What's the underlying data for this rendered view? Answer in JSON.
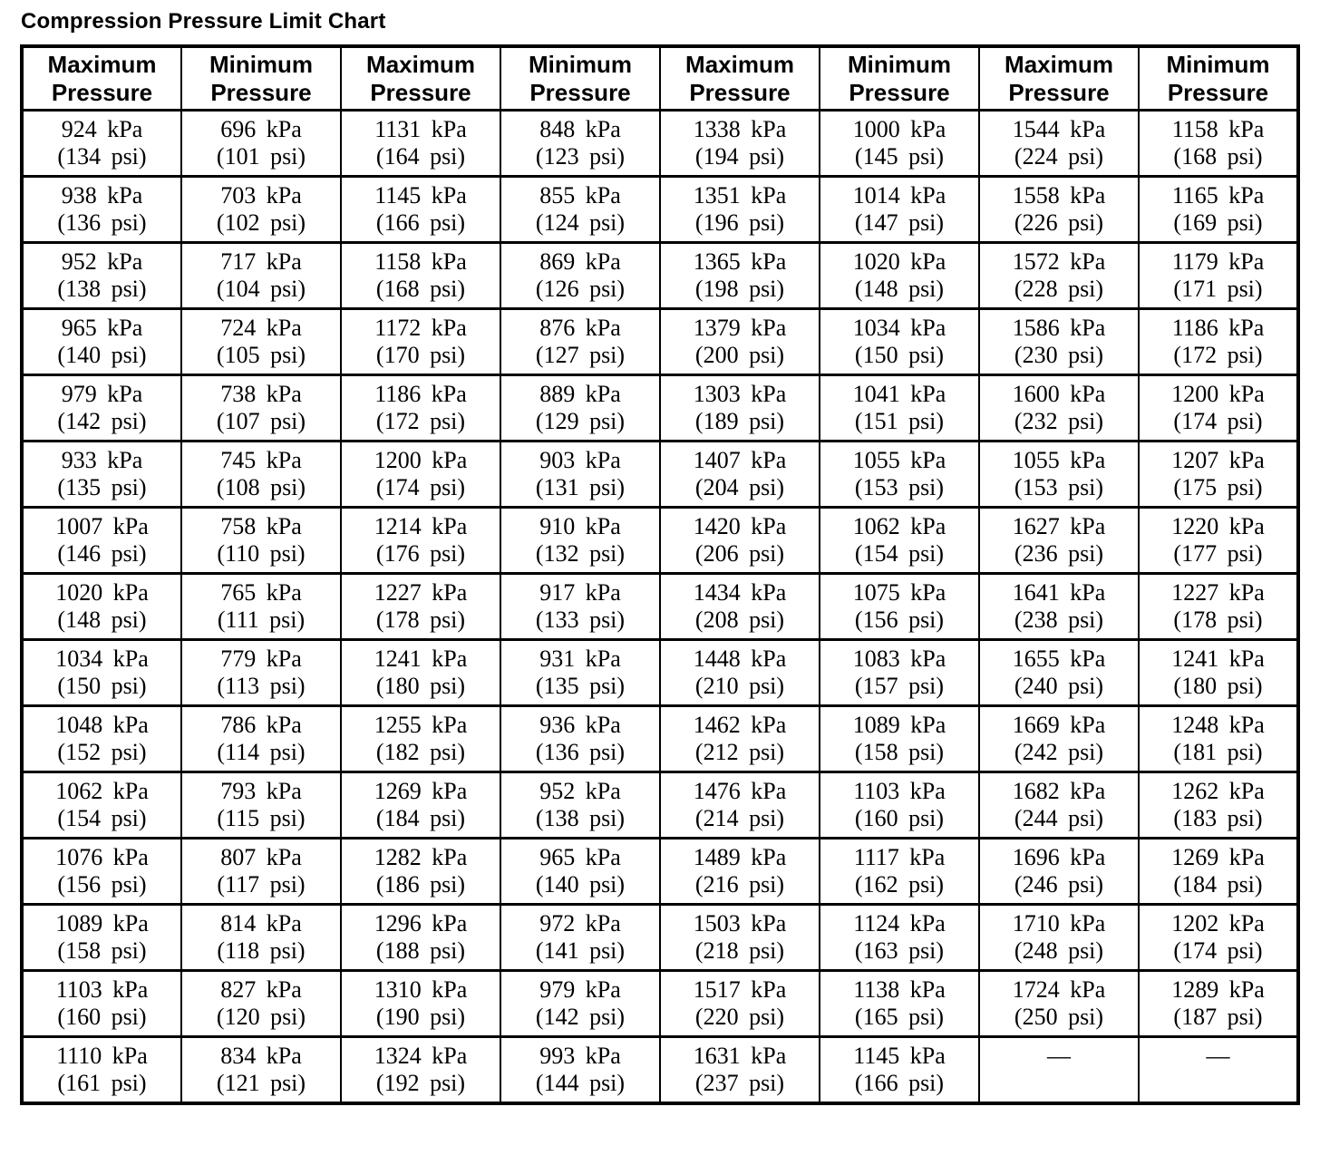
{
  "title": "Compression Pressure Limit Chart",
  "colors": {
    "background": "#ffffff",
    "text": "#000000",
    "border": "#000000"
  },
  "table": {
    "columns": [
      {
        "line1": "Maximum",
        "line2": "Pressure"
      },
      {
        "line1": "Minimum",
        "line2": "Pressure"
      },
      {
        "line1": "Maximum",
        "line2": "Pressure"
      },
      {
        "line1": "Minimum",
        "line2": "Pressure"
      },
      {
        "line1": "Maximum",
        "line2": "Pressure"
      },
      {
        "line1": "Minimum",
        "line2": "Pressure"
      },
      {
        "line1": "Maximum",
        "line2": "Pressure"
      },
      {
        "line1": "Minimum",
        "line2": "Pressure"
      }
    ],
    "rows": [
      [
        {
          "kpa": "924 kPa",
          "psi": "(134 psi)"
        },
        {
          "kpa": "696 kPa",
          "psi": "(101 psi)"
        },
        {
          "kpa": "1131 kPa",
          "psi": "(164 psi)"
        },
        {
          "kpa": "848 kPa",
          "psi": "(123 psi)"
        },
        {
          "kpa": "1338 kPa",
          "psi": "(194 psi)"
        },
        {
          "kpa": "1000 kPa",
          "psi": "(145 psi)"
        },
        {
          "kpa": "1544 kPa",
          "psi": "(224 psi)"
        },
        {
          "kpa": "1158 kPa",
          "psi": "(168 psi)"
        }
      ],
      [
        {
          "kpa": "938 kPa",
          "psi": "(136 psi)"
        },
        {
          "kpa": "703 kPa",
          "psi": "(102 psi)"
        },
        {
          "kpa": "1145 kPa",
          "psi": "(166 psi)"
        },
        {
          "kpa": "855 kPa",
          "psi": "(124 psi)"
        },
        {
          "kpa": "1351 kPa",
          "psi": "(196 psi)"
        },
        {
          "kpa": "1014 kPa",
          "psi": "(147 psi)"
        },
        {
          "kpa": "1558 kPa",
          "psi": "(226 psi)"
        },
        {
          "kpa": "1165 kPa",
          "psi": "(169 psi)"
        }
      ],
      [
        {
          "kpa": "952 kPa",
          "psi": "(138 psi)"
        },
        {
          "kpa": "717 kPa",
          "psi": "(104 psi)"
        },
        {
          "kpa": "1158 kPa",
          "psi": "(168 psi)"
        },
        {
          "kpa": "869 kPa",
          "psi": "(126 psi)"
        },
        {
          "kpa": "1365 kPa",
          "psi": "(198 psi)"
        },
        {
          "kpa": "1020 kPa",
          "psi": "(148 psi)"
        },
        {
          "kpa": "1572 kPa",
          "psi": "(228 psi)"
        },
        {
          "kpa": "1179 kPa",
          "psi": "(171 psi)"
        }
      ],
      [
        {
          "kpa": "965 kPa",
          "psi": "(140 psi)"
        },
        {
          "kpa": "724 kPa",
          "psi": "(105 psi)"
        },
        {
          "kpa": "1172 kPa",
          "psi": "(170 psi)"
        },
        {
          "kpa": "876 kPa",
          "psi": "(127 psi)"
        },
        {
          "kpa": "1379 kPa",
          "psi": "(200 psi)"
        },
        {
          "kpa": "1034 kPa",
          "psi": "(150 psi)"
        },
        {
          "kpa": "1586 kPa",
          "psi": "(230 psi)"
        },
        {
          "kpa": "1186 kPa",
          "psi": "(172 psi)"
        }
      ],
      [
        {
          "kpa": "979 kPa",
          "psi": "(142 psi)"
        },
        {
          "kpa": "738 kPa",
          "psi": "(107 psi)"
        },
        {
          "kpa": "1186 kPa",
          "psi": "(172 psi)"
        },
        {
          "kpa": "889 kPa",
          "psi": "(129 psi)"
        },
        {
          "kpa": "1303 kPa",
          "psi": "(189 psi)"
        },
        {
          "kpa": "1041 kPa",
          "psi": "(151 psi)"
        },
        {
          "kpa": "1600 kPa",
          "psi": "(232 psi)"
        },
        {
          "kpa": "1200 kPa",
          "psi": "(174 psi)"
        }
      ],
      [
        {
          "kpa": "933 kPa",
          "psi": "(135 psi)"
        },
        {
          "kpa": "745 kPa",
          "psi": "(108 psi)"
        },
        {
          "kpa": "1200 kPa",
          "psi": "(174 psi)"
        },
        {
          "kpa": "903 kPa",
          "psi": "(131 psi)"
        },
        {
          "kpa": "1407 kPa",
          "psi": "(204 psi)"
        },
        {
          "kpa": "1055 kPa",
          "psi": "(153 psi)"
        },
        {
          "kpa": "1055 kPa",
          "psi": "(153 psi)"
        },
        {
          "kpa": "1207 kPa",
          "psi": "(175 psi)"
        }
      ],
      [
        {
          "kpa": "1007 kPa",
          "psi": "(146 psi)"
        },
        {
          "kpa": "758 kPa",
          "psi": "(110 psi)"
        },
        {
          "kpa": "1214 kPa",
          "psi": "(176 psi)"
        },
        {
          "kpa": "910 kPa",
          "psi": "(132 psi)"
        },
        {
          "kpa": "1420 kPa",
          "psi": "(206 psi)"
        },
        {
          "kpa": "1062 kPa",
          "psi": "(154 psi)"
        },
        {
          "kpa": "1627 kPa",
          "psi": "(236 psi)"
        },
        {
          "kpa": "1220 kPa",
          "psi": "(177 psi)"
        }
      ],
      [
        {
          "kpa": "1020 kPa",
          "psi": "(148 psi)"
        },
        {
          "kpa": "765 kPa",
          "psi": "(111 psi)"
        },
        {
          "kpa": "1227 kPa",
          "psi": "(178 psi)"
        },
        {
          "kpa": "917 kPa",
          "psi": "(133 psi)"
        },
        {
          "kpa": "1434 kPa",
          "psi": "(208 psi)"
        },
        {
          "kpa": "1075 kPa",
          "psi": "(156 psi)"
        },
        {
          "kpa": "1641 kPa",
          "psi": "(238 psi)"
        },
        {
          "kpa": "1227 kPa",
          "psi": "(178 psi)"
        }
      ],
      [
        {
          "kpa": "1034 kPa",
          "psi": "(150 psi)"
        },
        {
          "kpa": "779 kPa",
          "psi": "(113 psi)"
        },
        {
          "kpa": "1241 kPa",
          "psi": "(180 psi)"
        },
        {
          "kpa": "931 kPa",
          "psi": "(135 psi)"
        },
        {
          "kpa": "1448 kPa",
          "psi": "(210 psi)"
        },
        {
          "kpa": "1083 kPa",
          "psi": "(157 psi)"
        },
        {
          "kpa": "1655 kPa",
          "psi": "(240 psi)"
        },
        {
          "kpa": "1241 kPa",
          "psi": "(180 psi)"
        }
      ],
      [
        {
          "kpa": "1048 kPa",
          "psi": "(152 psi)"
        },
        {
          "kpa": "786 kPa",
          "psi": "(114 psi)"
        },
        {
          "kpa": "1255 kPa",
          "psi": "(182 psi)"
        },
        {
          "kpa": "936 kPa",
          "psi": "(136 psi)"
        },
        {
          "kpa": "1462 kPa",
          "psi": "(212 psi)"
        },
        {
          "kpa": "1089 kPa",
          "psi": "(158 psi)"
        },
        {
          "kpa": "1669 kPa",
          "psi": "(242 psi)"
        },
        {
          "kpa": "1248 kPa",
          "psi": "(181 psi)"
        }
      ],
      [
        {
          "kpa": "1062 kPa",
          "psi": "(154 psi)"
        },
        {
          "kpa": "793 kPa",
          "psi": "(115 psi)"
        },
        {
          "kpa": "1269 kPa",
          "psi": "(184 psi)"
        },
        {
          "kpa": "952 kPa",
          "psi": "(138 psi)"
        },
        {
          "kpa": "1476 kPa",
          "psi": "(214 psi)"
        },
        {
          "kpa": "1103 kPa",
          "psi": "(160 psi)"
        },
        {
          "kpa": "1682 kPa",
          "psi": "(244 psi)"
        },
        {
          "kpa": "1262 kPa",
          "psi": "(183 psi)"
        }
      ],
      [
        {
          "kpa": "1076 kPa",
          "psi": "(156 psi)"
        },
        {
          "kpa": "807 kPa",
          "psi": "(117 psi)"
        },
        {
          "kpa": "1282 kPa",
          "psi": "(186 psi)"
        },
        {
          "kpa": "965 kPa",
          "psi": "(140 psi)"
        },
        {
          "kpa": "1489 kPa",
          "psi": "(216 psi)"
        },
        {
          "kpa": "1117 kPa",
          "psi": "(162 psi)"
        },
        {
          "kpa": "1696 kPa",
          "psi": "(246 psi)"
        },
        {
          "kpa": "1269 kPa",
          "psi": "(184 psi)"
        }
      ],
      [
        {
          "kpa": "1089 kPa",
          "psi": "(158 psi)"
        },
        {
          "kpa": "814 kPa",
          "psi": "(118 psi)"
        },
        {
          "kpa": "1296 kPa",
          "psi": "(188 psi)"
        },
        {
          "kpa": "972 kPa",
          "psi": "(141 psi)"
        },
        {
          "kpa": "1503 kPa",
          "psi": "(218 psi)"
        },
        {
          "kpa": "1124 kPa",
          "psi": "(163 psi)"
        },
        {
          "kpa": "1710 kPa",
          "psi": "(248 psi)"
        },
        {
          "kpa": "1202 kPa",
          "psi": "(174 psi)"
        }
      ],
      [
        {
          "kpa": "1103 kPa",
          "psi": "(160 psi)"
        },
        {
          "kpa": "827 kPa",
          "psi": "(120 psi)"
        },
        {
          "kpa": "1310 kPa",
          "psi": "(190 psi)"
        },
        {
          "kpa": "979 kPa",
          "psi": "(142 psi)"
        },
        {
          "kpa": "1517 kPa",
          "psi": "(220 psi)"
        },
        {
          "kpa": "1138 kPa",
          "psi": "(165 psi)"
        },
        {
          "kpa": "1724 kPa",
          "psi": "(250 psi)"
        },
        {
          "kpa": "1289 kPa",
          "psi": "(187 psi)"
        }
      ],
      [
        {
          "kpa": "1110 kPa",
          "psi": "(161 psi)"
        },
        {
          "kpa": "834 kPa",
          "psi": "(121 psi)"
        },
        {
          "kpa": "1324 kPa",
          "psi": "(192 psi)"
        },
        {
          "kpa": "993 kPa",
          "psi": "(144 psi)"
        },
        {
          "kpa": "1631 kPa",
          "psi": "(237 psi)"
        },
        {
          "kpa": "1145 kPa",
          "psi": "(166 psi)"
        },
        {
          "kpa": "—",
          "psi": ""
        },
        {
          "kpa": "—",
          "psi": ""
        }
      ]
    ]
  }
}
